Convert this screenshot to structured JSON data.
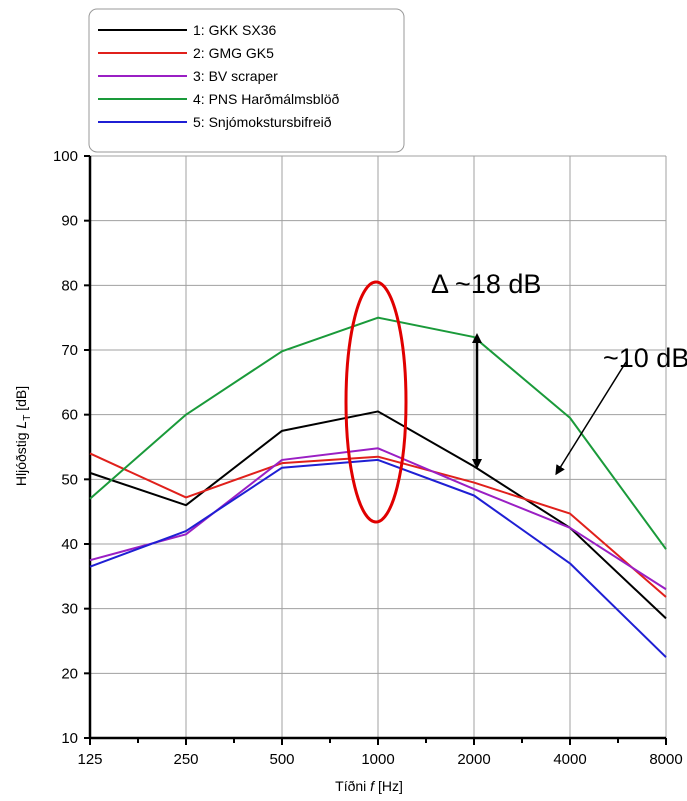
{
  "chart_data": {
    "type": "line",
    "xlabel_parts": [
      "Tíðni ",
      "f",
      " [Hz]"
    ],
    "ylabel_parts": [
      "Hljóðstig ",
      "L",
      "T",
      " [dB]"
    ],
    "categories": [
      "125",
      "250",
      "500",
      "1000",
      "2000",
      "4000",
      "8000"
    ],
    "ylim": [
      10,
      100
    ],
    "yticks": [
      10,
      20,
      30,
      40,
      50,
      60,
      70,
      80,
      90,
      100
    ],
    "grid": true,
    "legend_position": "top-left",
    "series": [
      {
        "name": "1: GKK SX36",
        "color": "#000000",
        "values": [
          51,
          46,
          57.5,
          60.5,
          52,
          42.5,
          28.5
        ]
      },
      {
        "name": "2: GMG GK5",
        "color": "#e0201b",
        "values": [
          54,
          47.2,
          52.5,
          53.5,
          49.5,
          44.7,
          31.8
        ]
      },
      {
        "name": "3: BV scraper",
        "color": "#9a1fc4",
        "values": [
          37.5,
          41.5,
          53,
          54.8,
          48.5,
          42.5,
          33
        ]
      },
      {
        "name": "4: PNS Harðmálmsblöð",
        "color": "#1a9a3a",
        "values": [
          47,
          60,
          69.8,
          75,
          72,
          59.5,
          39.2
        ]
      },
      {
        "name": "5: Snjómokstursbifreið",
        "color": "#1f1fd4",
        "values": [
          36.5,
          42,
          51.8,
          53,
          47.5,
          37,
          22.5
        ]
      }
    ],
    "annotations": {
      "delta_label": "Δ ~18 dB",
      "diff_label": "~10 dB"
    }
  }
}
